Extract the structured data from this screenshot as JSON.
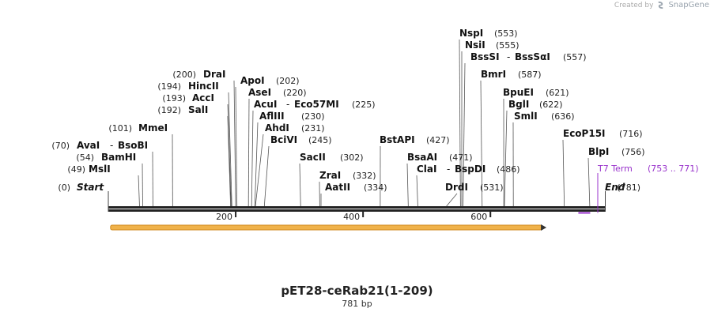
{
  "watermark": {
    "created_by": "Created by",
    "brand": "SnapGene"
  },
  "map": {
    "title": "pET28-ceRab21(1-209)",
    "length_label": "781 bp",
    "total_bp": 781,
    "ticks": [
      {
        "pos": 200,
        "label": "200"
      },
      {
        "pos": 400,
        "label": "400"
      },
      {
        "pos": 600,
        "label": "600"
      }
    ],
    "features": [
      {
        "name": "T7 Term",
        "range_label": "(753 .. 771)",
        "start": 753,
        "end": 771,
        "color": "#9933cc"
      }
    ],
    "orf": {
      "start": 1,
      "end": 688,
      "color": "#f0b24a"
    }
  },
  "sites": [
    {
      "name": "Start",
      "pos": 0,
      "pos_label": "(0)",
      "italic": true,
      "side": "right"
    },
    {
      "name": "MslI",
      "pos": 49,
      "pos_label": "(49)",
      "side": "right"
    },
    {
      "name": "BamHI",
      "pos": 54,
      "pos_label": "(54)",
      "side": "right"
    },
    {
      "name": "AvaI",
      "pos": 70,
      "pos_label": "(70)",
      "side": "right"
    },
    {
      "name": "BsoBI",
      "pos": 70,
      "pos_label": "",
      "side": "right",
      "joined": true
    },
    {
      "name": "MmeI",
      "pos": 101,
      "pos_label": "(101)",
      "side": "right"
    },
    {
      "name": "SalI",
      "pos": 192,
      "pos_label": "(192)",
      "side": "right"
    },
    {
      "name": "AccI",
      "pos": 193,
      "pos_label": "(193)",
      "side": "right"
    },
    {
      "name": "HincII",
      "pos": 194,
      "pos_label": "(194)",
      "side": "right"
    },
    {
      "name": "DraI",
      "pos": 200,
      "pos_label": "(200)",
      "side": "right"
    },
    {
      "name": "ApoI",
      "pos": 202,
      "pos_label": "(202)",
      "side": "left"
    },
    {
      "name": "AseI",
      "pos": 220,
      "pos_label": "(220)",
      "side": "left"
    },
    {
      "name": "AcuI",
      "pos": 225,
      "pos_label": "",
      "side": "left"
    },
    {
      "name": "Eco57MI",
      "pos": 225,
      "pos_label": "(225)",
      "side": "left",
      "joined": true
    },
    {
      "name": "AflIII",
      "pos": 230,
      "pos_label": "(230)",
      "side": "left"
    },
    {
      "name": "AhdI",
      "pos": 231,
      "pos_label": "(231)",
      "side": "left"
    },
    {
      "name": "BciVI",
      "pos": 245,
      "pos_label": "(245)",
      "side": "left"
    },
    {
      "name": "SacII",
      "pos": 302,
      "pos_label": "(302)",
      "side": "left"
    },
    {
      "name": "ZraI",
      "pos": 332,
      "pos_label": "(332)",
      "side": "left"
    },
    {
      "name": "AatII",
      "pos": 334,
      "pos_label": "(334)",
      "side": "left"
    },
    {
      "name": "BstAPI",
      "pos": 427,
      "pos_label": "(427)",
      "side": "left"
    },
    {
      "name": "BsaAI",
      "pos": 471,
      "pos_label": "(471)",
      "side": "left"
    },
    {
      "name": "ClaI",
      "pos": 486,
      "pos_label": "",
      "side": "left"
    },
    {
      "name": "BspDI",
      "pos": 486,
      "pos_label": "(486)",
      "side": "left",
      "joined": true
    },
    {
      "name": "DrdI",
      "pos": 531,
      "pos_label": "(531)",
      "side": "left"
    },
    {
      "name": "NspI",
      "pos": 553,
      "pos_label": "(553)",
      "side": "left"
    },
    {
      "name": "NsiI",
      "pos": 555,
      "pos_label": "(555)",
      "side": "left"
    },
    {
      "name": "BssSI",
      "pos": 557,
      "pos_label": "",
      "side": "left"
    },
    {
      "name": "BssSαI",
      "pos": 557,
      "pos_label": "(557)",
      "side": "left",
      "joined": true
    },
    {
      "name": "BmrI",
      "pos": 587,
      "pos_label": "(587)",
      "side": "left"
    },
    {
      "name": "BpuEI",
      "pos": 621,
      "pos_label": "(621)",
      "side": "left"
    },
    {
      "name": "BglI",
      "pos": 622,
      "pos_label": "(622)",
      "side": "left"
    },
    {
      "name": "SmlI",
      "pos": 636,
      "pos_label": "(636)",
      "side": "left"
    },
    {
      "name": "EcoP15I",
      "pos": 716,
      "pos_label": "(716)",
      "side": "left"
    },
    {
      "name": "BlpI",
      "pos": 756,
      "pos_label": "(756)",
      "side": "left"
    },
    {
      "name": "End",
      "pos": 781,
      "pos_label": "(781)",
      "italic": true,
      "side": "left"
    }
  ]
}
